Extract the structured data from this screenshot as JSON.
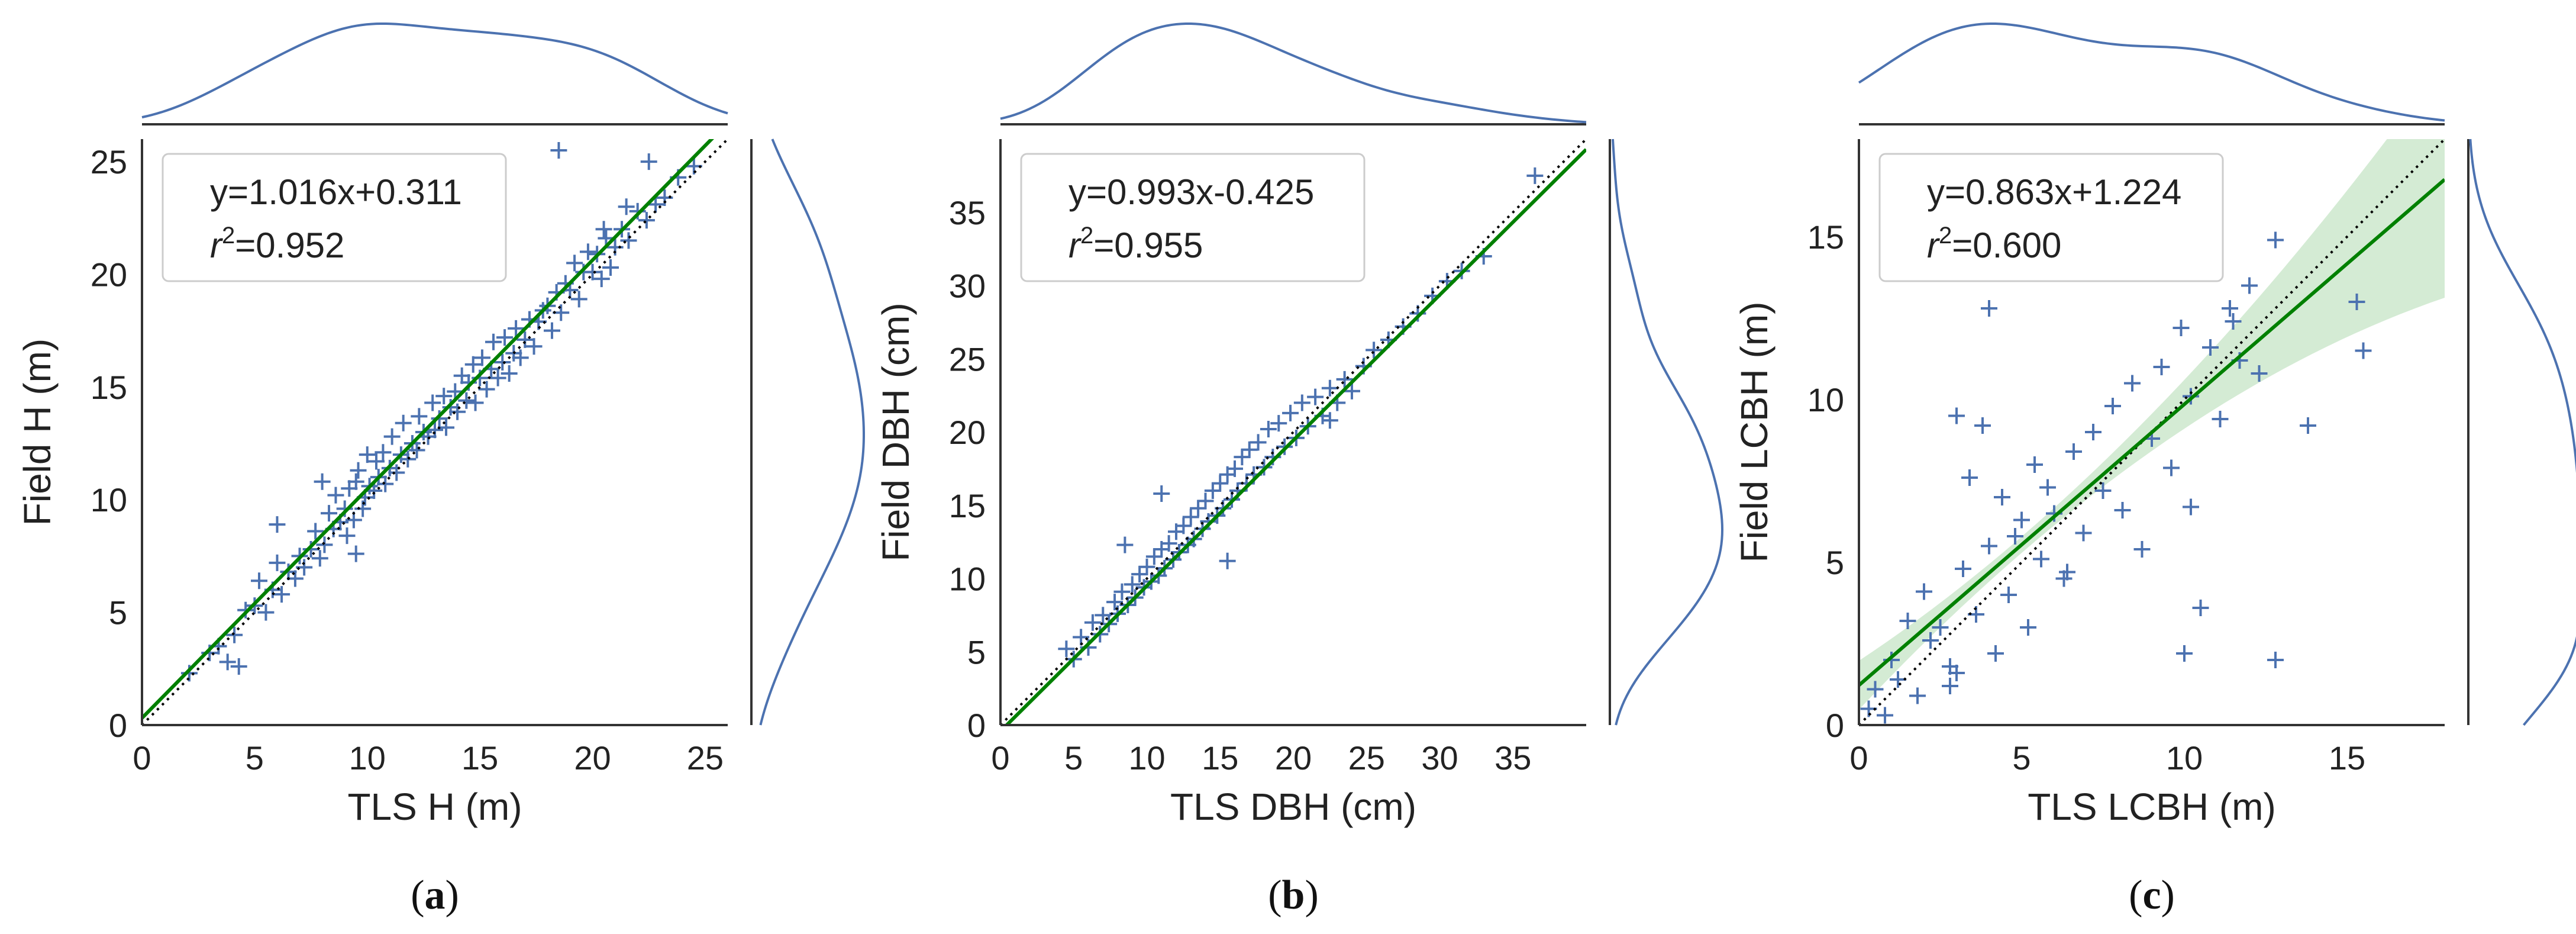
{
  "colors": {
    "points": "#4C72B0",
    "fit_line": "#008000",
    "ci_band": "#9fd39f",
    "identity_line": "#000000",
    "axes": "#333333",
    "legend_border": "#cccccc"
  },
  "chart_data": [
    {
      "type": "scatter",
      "panel_label": "(a)",
      "xlabel": "TLS H (m)",
      "ylabel": "Field H (m)",
      "xlim": [
        0,
        26
      ],
      "ylim": [
        0,
        26
      ],
      "xticks": [
        0,
        5,
        10,
        15,
        20,
        25
      ],
      "yticks": [
        0,
        5,
        10,
        15,
        20,
        25
      ],
      "equation": "y=1.016x+0.311",
      "r2_prefix": "r",
      "r2_value": "=0.952",
      "fit": {
        "slope": 1.016,
        "intercept": 0.311
      },
      "identity_line": true,
      "confidence_band": false,
      "marker": "+",
      "marginals": "kde",
      "x": [
        2.1,
        3.0,
        3.4,
        3.8,
        4.1,
        4.3,
        4.6,
        5.0,
        5.2,
        5.5,
        5.8,
        6.0,
        6.2,
        6.5,
        6.8,
        7.0,
        7.2,
        7.5,
        7.7,
        7.9,
        8.1,
        8.3,
        8.5,
        8.6,
        8.8,
        9.0,
        9.1,
        9.2,
        9.4,
        9.5,
        9.6,
        9.8,
        9.9,
        10.0,
        10.1,
        10.3,
        10.4,
        10.5,
        10.7,
        10.8,
        11.0,
        11.1,
        11.3,
        11.5,
        11.6,
        11.8,
        12.0,
        12.2,
        12.3,
        12.5,
        12.7,
        12.9,
        13.0,
        13.2,
        13.4,
        13.5,
        13.7,
        13.9,
        14.0,
        14.2,
        14.4,
        14.5,
        14.7,
        14.8,
        15.0,
        15.1,
        15.3,
        15.5,
        15.6,
        15.8,
        16.0,
        16.1,
        16.3,
        16.5,
        16.6,
        16.8,
        17.0,
        17.2,
        17.4,
        17.6,
        17.8,
        18.0,
        18.2,
        18.4,
        18.6,
        18.8,
        19.0,
        19.2,
        19.4,
        19.6,
        19.8,
        20.0,
        20.2,
        20.4,
        20.6,
        20.8,
        21.0,
        21.3,
        21.6,
        22.0,
        22.4,
        22.8,
        23.2,
        23.8,
        24.5,
        18.5,
        20.5,
        21.5,
        8.0,
        9.5,
        6.0,
        22.5
      ],
      "y": [
        2.3,
        3.2,
        3.5,
        2.8,
        4.0,
        2.6,
        5.1,
        5.3,
        6.4,
        5.0,
        6.0,
        7.2,
        5.8,
        6.8,
        6.5,
        7.5,
        7.0,
        7.8,
        8.6,
        7.4,
        8.0,
        9.4,
        8.7,
        10.2,
        9.0,
        9.6,
        8.4,
        10.5,
        9.1,
        10.8,
        11.3,
        9.6,
        10.1,
        12.0,
        10.6,
        10.4,
        11.7,
        11.0,
        12.1,
        10.7,
        11.4,
        12.8,
        11.2,
        12.0,
        13.4,
        11.8,
        12.5,
        12.2,
        13.7,
        13.0,
        12.8,
        14.3,
        13.1,
        13.6,
        14.6,
        13.2,
        14.1,
        14.8,
        13.9,
        15.5,
        14.4,
        15.2,
        16.0,
        14.3,
        15.4,
        16.3,
        14.9,
        15.8,
        17.0,
        15.4,
        16.1,
        17.2,
        15.6,
        16.5,
        17.6,
        16.3,
        17.1,
        18.0,
        16.8,
        17.9,
        18.4,
        18.6,
        17.5,
        19.2,
        18.3,
        19.6,
        19.3,
        20.5,
        18.9,
        20.1,
        21.0,
        20.1,
        20.9,
        19.8,
        21.6,
        20.3,
        21.2,
        22.0,
        21.5,
        22.8,
        22.4,
        23.1,
        23.4,
        24.3,
        24.8,
        25.5,
        22.0,
        23.0,
        10.8,
        7.6,
        8.9,
        25.0
      ]
    },
    {
      "type": "scatter",
      "panel_label": "(b)",
      "xlabel": "TLS DBH (cm)",
      "ylabel": "Field DBH (cm)",
      "xlim": [
        0,
        40
      ],
      "ylim": [
        0,
        40
      ],
      "xticks": [
        0,
        5,
        10,
        15,
        20,
        25,
        30,
        35
      ],
      "yticks": [
        0,
        5,
        10,
        15,
        20,
        25,
        30,
        35
      ],
      "equation": "y=0.993x-0.425",
      "r2_prefix": "r",
      "r2_value": "=0.955",
      "fit": {
        "slope": 0.993,
        "intercept": -0.425
      },
      "identity_line": true,
      "confidence_band": false,
      "marker": "+",
      "marginals": "kde",
      "x": [
        4.5,
        5.0,
        5.5,
        6.0,
        6.3,
        6.8,
        7.0,
        7.4,
        7.8,
        8.0,
        8.3,
        8.7,
        9.0,
        9.2,
        9.5,
        9.8,
        10.0,
        10.3,
        10.5,
        10.8,
        11.0,
        11.2,
        11.5,
        11.8,
        12.0,
        12.2,
        12.5,
        12.8,
        13.0,
        13.2,
        13.5,
        13.8,
        14.0,
        14.2,
        14.5,
        14.8,
        15.0,
        15.2,
        15.5,
        15.8,
        16.0,
        16.2,
        16.5,
        16.8,
        17.0,
        17.3,
        17.6,
        18.0,
        18.3,
        18.6,
        19.0,
        19.4,
        19.8,
        20.2,
        20.6,
        21.0,
        21.5,
        22.0,
        22.5,
        23.0,
        23.5,
        24.0,
        24.8,
        25.5,
        26.5,
        27.5,
        28.5,
        29.5,
        30.5,
        31.5,
        33.0,
        36.5,
        11.0,
        15.5,
        22.5,
        8.5
      ],
      "y": [
        5.2,
        4.5,
        6.0,
        5.3,
        7.0,
        6.2,
        7.5,
        6.9,
        8.4,
        7.6,
        9.1,
        8.2,
        9.6,
        8.7,
        10.3,
        9.4,
        10.8,
        9.8,
        11.5,
        10.2,
        12.0,
        10.7,
        12.4,
        11.3,
        13.2,
        11.8,
        13.6,
        12.3,
        14.2,
        12.7,
        14.8,
        13.4,
        15.3,
        13.9,
        16.0,
        14.3,
        16.5,
        14.8,
        17.1,
        15.4,
        17.5,
        16.0,
        18.3,
        16.5,
        18.8,
        17.1,
        19.3,
        17.6,
        20.2,
        18.3,
        20.6,
        19.0,
        21.3,
        19.6,
        22.0,
        20.4,
        22.4,
        21.1,
        23.0,
        22.0,
        23.6,
        22.8,
        24.5,
        25.6,
        26.3,
        27.2,
        28.1,
        29.3,
        30.3,
        31.0,
        32.0,
        37.5,
        15.8,
        11.2,
        20.8,
        12.3
      ]
    },
    {
      "type": "scatter",
      "panel_label": "(c)",
      "xlabel": "TLS LCBH (m)",
      "ylabel": "Field LCBH (m)",
      "xlim": [
        0,
        18
      ],
      "ylim": [
        0,
        18
      ],
      "xticks": [
        0,
        5,
        10,
        15
      ],
      "yticks": [
        0,
        5,
        10,
        15
      ],
      "equation": "y=0.863x+1.224",
      "r2_prefix": "r",
      "r2_value": "=0.600",
      "fit": {
        "slope": 0.863,
        "intercept": 1.224
      },
      "identity_line": true,
      "confidence_band": true,
      "marker": "+",
      "marginals": "kde",
      "x": [
        0.3,
        0.5,
        0.8,
        1.0,
        1.2,
        1.5,
        1.8,
        2.0,
        2.2,
        2.5,
        2.8,
        3.0,
        3.2,
        3.4,
        3.6,
        3.8,
        4.0,
        4.2,
        4.4,
        4.6,
        4.8,
        5.0,
        5.2,
        5.4,
        5.6,
        5.8,
        6.0,
        6.3,
        6.6,
        6.9,
        7.2,
        7.5,
        7.8,
        8.1,
        8.4,
        8.7,
        9.0,
        9.3,
        9.6,
        9.9,
        10.2,
        10.5,
        10.8,
        11.1,
        11.4,
        11.7,
        12.0,
        12.3,
        12.8,
        13.8,
        15.3,
        15.5,
        4.0,
        3.0,
        10.0,
        10.2,
        12.8,
        11.5,
        2.8,
        6.4
      ],
      "y": [
        0.5,
        1.1,
        0.3,
        2.0,
        1.4,
        3.2,
        0.9,
        4.1,
        2.6,
        3.0,
        1.8,
        9.5,
        4.8,
        7.6,
        3.4,
        9.2,
        5.5,
        2.2,
        7.0,
        4.0,
        5.8,
        6.3,
        3.0,
        8.0,
        5.1,
        7.3,
        6.5,
        4.5,
        8.4,
        5.9,
        9.0,
        7.2,
        9.8,
        6.6,
        10.5,
        5.4,
        8.8,
        11.0,
        7.9,
        12.2,
        10.1,
        3.6,
        11.6,
        9.4,
        12.8,
        11.2,
        13.5,
        10.8,
        14.9,
        9.2,
        13.0,
        11.5,
        12.8,
        1.6,
        2.2,
        6.7,
        2.0,
        12.4,
        1.2,
        4.7
      ]
    }
  ]
}
